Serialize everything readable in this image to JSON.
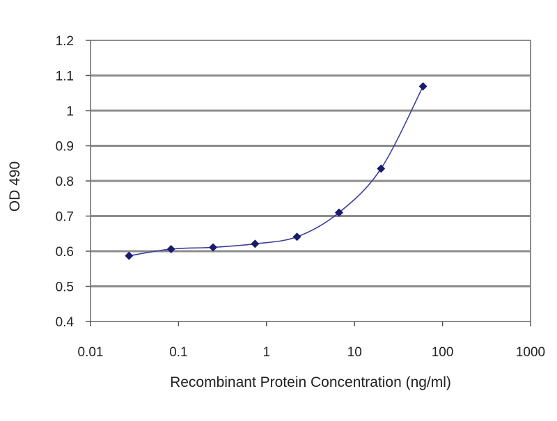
{
  "chart_data": {
    "type": "scatter",
    "title": "",
    "xlabel": "Recombinant Protein Concentration (ng/ml)",
    "ylabel": "OD 490",
    "x_scale": "log",
    "xlim": [
      0.01,
      1000
    ],
    "ylim": [
      0.4,
      1.2
    ],
    "x_ticks": [
      "0.01",
      "0.1",
      "1",
      "10",
      "100",
      "1000"
    ],
    "y_ticks": [
      "0.4",
      "0.5",
      "0.6",
      "0.7",
      "0.8",
      "0.9",
      "1",
      "1.1",
      "1.2"
    ],
    "grid": "horizontal",
    "legend": "none",
    "series": [
      {
        "x": [
          0.0274,
          0.0823,
          0.247,
          0.741,
          2.22,
          6.67,
          20,
          60
        ],
        "y": [
          0.587,
          0.606,
          0.611,
          0.621,
          0.641,
          0.71,
          0.835,
          1.069
        ],
        "color": "#1a1a6e",
        "marker": "diamond",
        "line": "smooth"
      }
    ],
    "plot_background": "#ffffff",
    "grid_color": "#8c8c8c"
  }
}
